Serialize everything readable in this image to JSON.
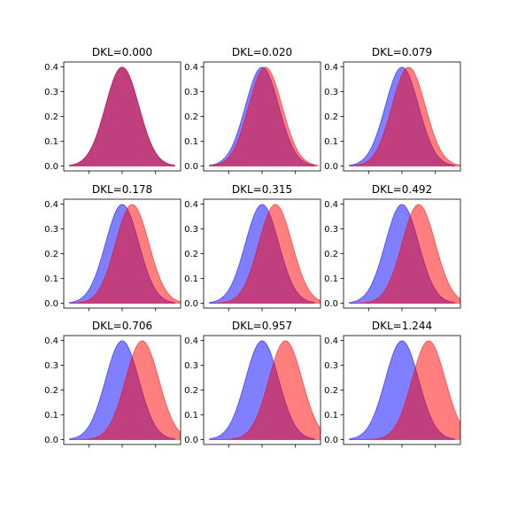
{
  "figure": {
    "layout": "3x3 grid",
    "colors": {
      "p": "#0000ff",
      "q": "#ff0000",
      "fill_opacity": 0.5,
      "axes": "#000000",
      "background": "#ffffff"
    },
    "x_range": [
      -3.5,
      3.5
    ]
  },
  "chart_data": [
    {
      "type": "area",
      "title": "DKL=0.000",
      "series": [
        {
          "mean": 0.0,
          "sd": 1
        },
        {
          "mean": 0.0,
          "sd": 1
        }
      ],
      "ylim": [
        -0.02,
        0.42
      ],
      "yticks": [
        "0.0",
        "0.1",
        "0.2",
        "0.3",
        "0.4"
      ],
      "grid": false,
      "legend": "none"
    },
    {
      "type": "area",
      "title": "DKL=0.020",
      "series": [
        {
          "mean": 0.0,
          "sd": 1
        },
        {
          "mean": 0.2,
          "sd": 1
        }
      ],
      "ylim": [
        -0.02,
        0.42
      ],
      "yticks": [
        "0.0",
        "0.1",
        "0.2",
        "0.3",
        "0.4"
      ],
      "grid": false,
      "legend": "none"
    },
    {
      "type": "area",
      "title": "DKL=0.079",
      "series": [
        {
          "mean": 0.0,
          "sd": 1
        },
        {
          "mean": 0.4,
          "sd": 1
        }
      ],
      "ylim": [
        -0.02,
        0.42
      ],
      "yticks": [
        "0.0",
        "0.1",
        "0.2",
        "0.3",
        "0.4"
      ],
      "grid": false,
      "legend": "none"
    },
    {
      "type": "area",
      "title": "DKL=0.178",
      "series": [
        {
          "mean": 0.0,
          "sd": 1
        },
        {
          "mean": 0.6,
          "sd": 1
        }
      ],
      "ylim": [
        -0.02,
        0.42
      ],
      "yticks": [
        "0.0",
        "0.1",
        "0.2",
        "0.3",
        "0.4"
      ],
      "grid": false,
      "legend": "none"
    },
    {
      "type": "area",
      "title": "DKL=0.315",
      "series": [
        {
          "mean": 0.0,
          "sd": 1
        },
        {
          "mean": 0.8,
          "sd": 1
        }
      ],
      "ylim": [
        -0.02,
        0.42
      ],
      "yticks": [
        "0.0",
        "0.1",
        "0.2",
        "0.3",
        "0.4"
      ],
      "grid": false,
      "legend": "none"
    },
    {
      "type": "area",
      "title": "DKL=0.492",
      "series": [
        {
          "mean": 0.0,
          "sd": 1
        },
        {
          "mean": 1.0,
          "sd": 1
        }
      ],
      "ylim": [
        -0.02,
        0.42
      ],
      "yticks": [
        "0.0",
        "0.1",
        "0.2",
        "0.3",
        "0.4"
      ],
      "grid": false,
      "legend": "none"
    },
    {
      "type": "area",
      "title": "DKL=0.706",
      "series": [
        {
          "mean": 0.0,
          "sd": 1
        },
        {
          "mean": 1.2,
          "sd": 1
        }
      ],
      "ylim": [
        -0.02,
        0.42
      ],
      "yticks": [
        "0.0",
        "0.1",
        "0.2",
        "0.3",
        "0.4"
      ],
      "grid": false,
      "legend": "none"
    },
    {
      "type": "area",
      "title": "DKL=0.957",
      "series": [
        {
          "mean": 0.0,
          "sd": 1
        },
        {
          "mean": 1.4,
          "sd": 1
        }
      ],
      "ylim": [
        -0.02,
        0.42
      ],
      "yticks": [
        "0.0",
        "0.1",
        "0.2",
        "0.3",
        "0.4"
      ],
      "grid": false,
      "legend": "none"
    },
    {
      "type": "area",
      "title": "DKL=1.244",
      "series": [
        {
          "mean": 0.0,
          "sd": 1
        },
        {
          "mean": 1.6,
          "sd": 1
        }
      ],
      "ylim": [
        -0.02,
        0.42
      ],
      "yticks": [
        "0.0",
        "0.1",
        "0.2",
        "0.3",
        "0.4"
      ],
      "grid": false,
      "legend": "none"
    }
  ]
}
